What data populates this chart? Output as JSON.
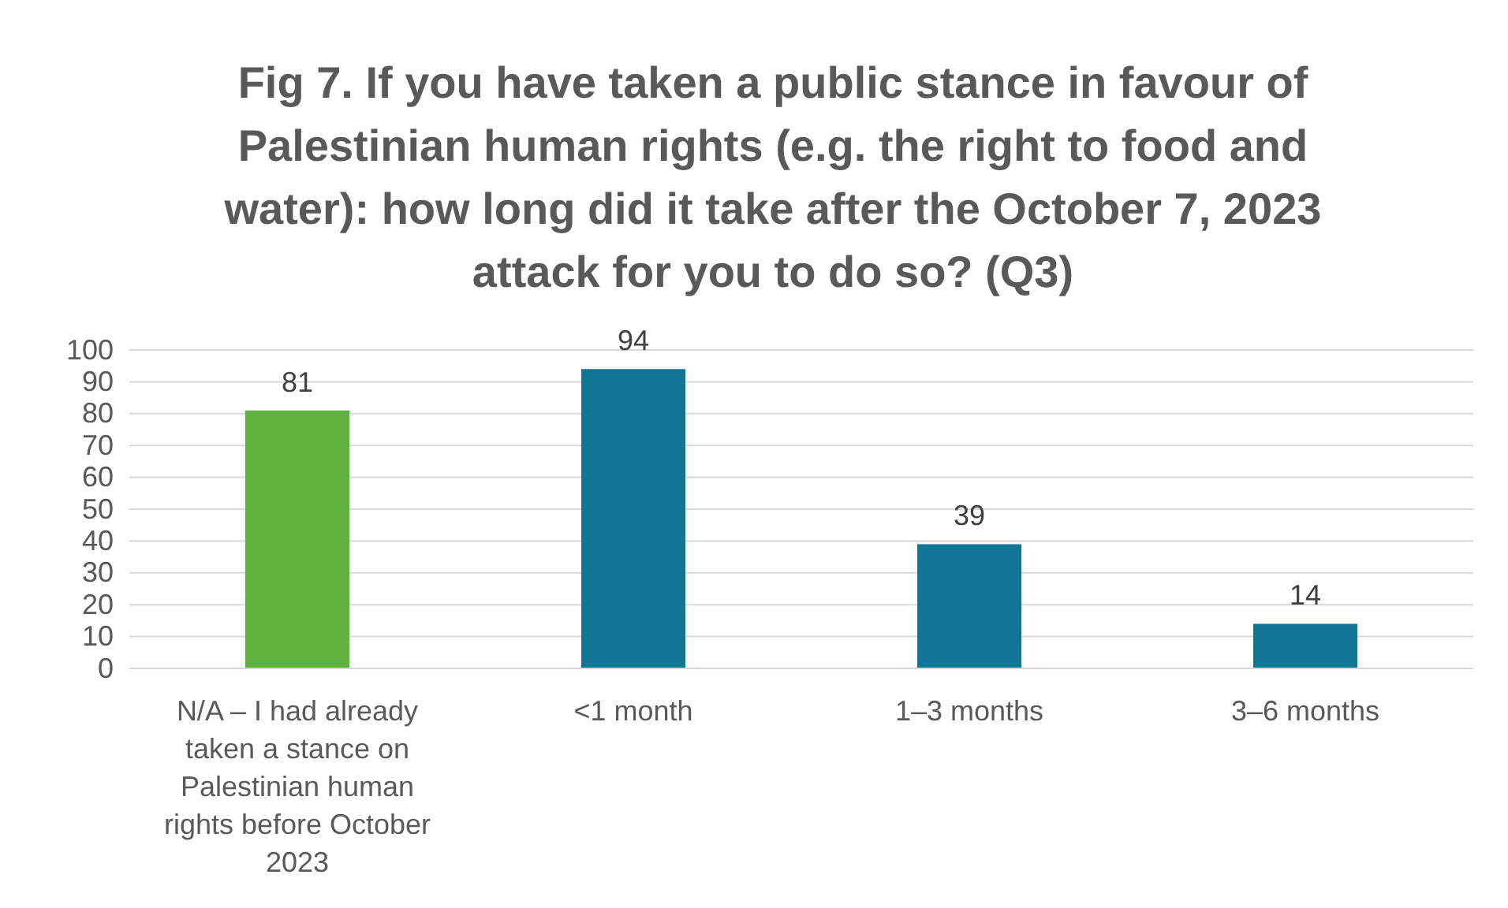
{
  "chart_data": {
    "type": "bar",
    "title": "Fig 7. If you have taken a public stance in favour of Palestinian human rights (e.g. the right to food and water): how long did it take after the October 7, 2023 attack for you to do so? (Q3)",
    "categories": [
      "N/A – I had already taken a stance on Palestinian human rights before October 2023",
      "<1 month",
      "1–3 months",
      "3–6 months"
    ],
    "values": [
      81,
      94,
      39,
      14
    ],
    "colors": [
      "#5db33d",
      "#137594",
      "#137594",
      "#137594"
    ],
    "ylim": [
      0,
      100
    ],
    "yticks": [
      0,
      10,
      20,
      30,
      40,
      50,
      60,
      70,
      80,
      90,
      100
    ],
    "grid": "y",
    "data_labels": true
  }
}
